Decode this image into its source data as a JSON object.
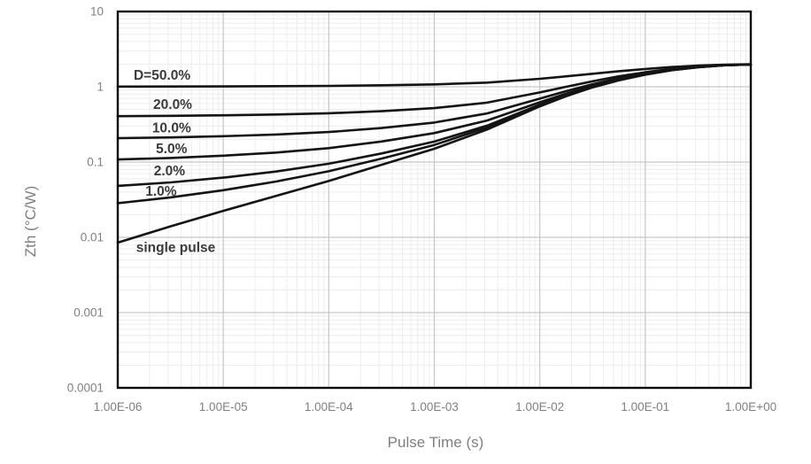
{
  "chart_data": {
    "type": "line",
    "title": "",
    "xlabel": "Pulse Time (s)",
    "ylabel": "Zth (°C/W)",
    "x_axis": {
      "label": "Pulse Time (s)",
      "scale": "log",
      "min": 1e-06,
      "max": 1.0,
      "tick_values": [
        1e-06,
        1e-05,
        0.0001,
        0.001,
        0.01,
        0.1,
        1.0
      ],
      "tick_labels": [
        "1.00E-06",
        "1.00E-05",
        "1.00E-04",
        "1.00E-03",
        "1.00E-02",
        "1.00E-01",
        "1.00E+00"
      ]
    },
    "y_axis": {
      "label": "Zth (°C/W)",
      "scale": "log",
      "min": 0.0001,
      "max": 10,
      "tick_values": [
        10,
        1,
        0.1,
        0.01,
        0.001,
        0.0001
      ],
      "tick_labels": [
        "10",
        "1",
        "0.1",
        "0.01",
        "0.001",
        "0.0001"
      ]
    },
    "grid": {
      "major": true,
      "minor": true
    },
    "legend": "inline curve labels, no legend box",
    "saturation_rth_c_per_w": 2.0,
    "time_log10": [
      -6,
      -5.5,
      -5,
      -4.5,
      -4,
      -3.5,
      -3,
      -2.5,
      -2,
      -1.75,
      -1.5,
      -1.25,
      -1,
      -0.75,
      -0.5,
      -0.25,
      0
    ],
    "series": [
      {
        "name": "duty-50",
        "label": "D=50.0%",
        "duty_cycle_percent": 50.0,
        "label_anchor": {
          "t_log10": -5.58,
          "zth": 1.44
        },
        "zth": [
          1.0043,
          1.007,
          1.0113,
          1.0178,
          1.028,
          1.046,
          1.075,
          1.135,
          1.275,
          1.375,
          1.49,
          1.61,
          1.725,
          1.83,
          1.91,
          1.965,
          1.99
        ]
      },
      {
        "name": "duty-20",
        "label": "20.0%",
        "duty_cycle_percent": 20.0,
        "label_anchor": {
          "t_log10": -5.48,
          "zth": 0.59
        },
        "zth": [
          0.4068,
          0.4112,
          0.418,
          0.4284,
          0.4448,
          0.4736,
          0.52,
          0.616,
          0.84,
          1.0,
          1.184,
          1.376,
          1.56,
          1.728,
          1.856,
          1.944,
          1.984
        ]
      },
      {
        "name": "duty-10",
        "label": "10.0%",
        "duty_cycle_percent": 10.0,
        "label_anchor": {
          "t_log10": -5.49,
          "zth": 0.288
        },
        "zth": [
          0.2077,
          0.2126,
          0.2203,
          0.232,
          0.2504,
          0.2828,
          0.335,
          0.443,
          0.695,
          0.875,
          1.082,
          1.298,
          1.505,
          1.694,
          1.838,
          1.937,
          1.982
        ]
      },
      {
        "name": "duty-5",
        "label": "5.0%",
        "duty_cycle_percent": 5.0,
        "label_anchor": {
          "t_log10": -5.49,
          "zth": 0.152
        },
        "zth": [
          0.1081,
          0.1133,
          0.1214,
          0.1337,
          0.1532,
          0.1874,
          0.2425,
          0.3565,
          0.6225,
          0.8125,
          1.031,
          1.259,
          1.4775,
          1.677,
          1.829,
          1.9335,
          1.981
        ]
      },
      {
        "name": "duty-2",
        "label": "2.0%",
        "duty_cycle_percent": 2.0,
        "label_anchor": {
          "t_log10": -5.51,
          "zth": 0.0773
        },
        "zth": [
          0.0483,
          0.0537,
          0.0621,
          0.0748,
          0.0949,
          0.1302,
          0.187,
          0.3046,
          0.579,
          0.775,
          1.0004,
          1.2356,
          1.461,
          1.6668,
          1.8236,
          1.9314,
          1.9804
        ]
      },
      {
        "name": "duty-1",
        "label": "1.0%",
        "duty_cycle_percent": 1.0,
        "label_anchor": {
          "t_log10": -5.59,
          "zth": 0.0415
        },
        "zth": [
          0.0284,
          0.0339,
          0.0423,
          0.0551,
          0.0754,
          0.1111,
          0.1685,
          0.2873,
          0.5645,
          0.7625,
          0.9902,
          1.2278,
          1.4555,
          1.6634,
          1.8218,
          1.9307,
          1.9802
        ]
      },
      {
        "name": "single-pulse",
        "label": "single pulse",
        "duty_cycle_percent": 0,
        "label_anchor": {
          "t_log10": -5.45,
          "zth": 0.0074
        },
        "zth": [
          0.0085,
          0.014,
          0.0225,
          0.0355,
          0.056,
          0.092,
          0.15,
          0.27,
          0.55,
          0.75,
          0.98,
          1.22,
          1.45,
          1.66,
          1.82,
          1.93,
          1.98
        ]
      }
    ]
  },
  "colors": {
    "curve": "#141414",
    "plot_border": "#0a0a0a",
    "grid_major": "#c6c6c6",
    "grid_minor": "#ececec",
    "tick_text": "#7f7f7f",
    "axis_title_text": "#7f7f7f",
    "curve_label_text": "#3b3b3b",
    "background": "#ffffff"
  }
}
